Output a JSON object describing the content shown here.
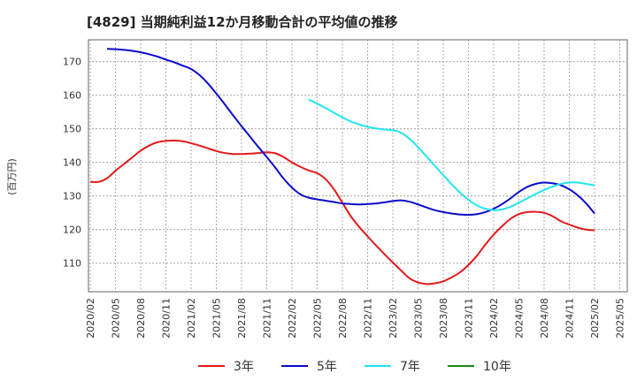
{
  "chart_data": {
    "type": "line",
    "title": "[4829]  当期純利益12か月移動合計の平均値の推移",
    "ylabel": "(百万円)",
    "xlabel": "",
    "ylim": [
      101.5,
      176.5
    ],
    "yticks": [
      110,
      120,
      130,
      140,
      150,
      160,
      170
    ],
    "x_ticks": [
      "2020/02",
      "2020/05",
      "2020/08",
      "2020/11",
      "2021/02",
      "2021/05",
      "2021/08",
      "2021/11",
      "2022/02",
      "2022/05",
      "2022/08",
      "2022/11",
      "2023/02",
      "2023/05",
      "2023/08",
      "2023/11",
      "2024/02",
      "2024/05",
      "2024/08",
      "2024/11",
      "2025/02",
      "2025/05"
    ],
    "grid": true,
    "legend_position": "bottom",
    "colors": {
      "3年": "#e41a1c",
      "5年": "#0a0acc",
      "7年": "#22e5f0",
      "10年": "#1a8a1a"
    },
    "series": [
      {
        "name": "3年",
        "color": "#e41a1c",
        "x": [
          "2020/02",
          "2020/03",
          "2020/04",
          "2020/05",
          "2020/06",
          "2020/07",
          "2020/08",
          "2020/09",
          "2020/10",
          "2020/11",
          "2020/12",
          "2021/01",
          "2021/02",
          "2021/03",
          "2021/04",
          "2021/05",
          "2021/06",
          "2021/07",
          "2021/08",
          "2021/09",
          "2021/10",
          "2021/11",
          "2021/12",
          "2022/01",
          "2022/02",
          "2022/03",
          "2022/04",
          "2022/05",
          "2022/06",
          "2022/07",
          "2022/08",
          "2022/09",
          "2022/10",
          "2022/11",
          "2022/12",
          "2023/01",
          "2023/02",
          "2023/03",
          "2023/04",
          "2023/05",
          "2023/06",
          "2023/07",
          "2023/08",
          "2023/09",
          "2023/10",
          "2023/11",
          "2023/12",
          "2024/01",
          "2024/02",
          "2024/03",
          "2024/04",
          "2024/05",
          "2024/06",
          "2024/07",
          "2024/08",
          "2024/09",
          "2024/10",
          "2024/11",
          "2024/12",
          "2025/01",
          "2025/02"
        ],
        "values": [
          134.2,
          134.2,
          135.3,
          137.5,
          139.5,
          141.5,
          143.5,
          145.0,
          146.0,
          146.4,
          146.5,
          146.3,
          145.7,
          145.0,
          144.2,
          143.4,
          142.8,
          142.5,
          142.5,
          142.6,
          142.8,
          143.0,
          142.7,
          141.6,
          140.0,
          138.7,
          137.6,
          136.8,
          135.0,
          132.0,
          128.0,
          124.0,
          120.8,
          118.0,
          115.3,
          112.7,
          110.2,
          107.8,
          105.5,
          104.3,
          103.8,
          104.0,
          104.6,
          105.8,
          107.3,
          109.5,
          112.2,
          115.5,
          118.5,
          121.0,
          123.2,
          124.6,
          125.2,
          125.3,
          125.0,
          124.0,
          122.5,
          121.5,
          120.6,
          120.0,
          119.8
        ]
      },
      {
        "name": "5年",
        "color": "#0a0acc",
        "x": [
          "2020/04",
          "2020/05",
          "2020/06",
          "2020/07",
          "2020/08",
          "2020/09",
          "2020/10",
          "2020/11",
          "2020/12",
          "2021/01",
          "2021/02",
          "2021/03",
          "2021/04",
          "2021/05",
          "2021/06",
          "2021/07",
          "2021/08",
          "2021/09",
          "2021/10",
          "2021/11",
          "2021/12",
          "2022/01",
          "2022/02",
          "2022/03",
          "2022/04",
          "2022/05",
          "2022/06",
          "2022/07",
          "2022/08",
          "2022/09",
          "2022/10",
          "2022/11",
          "2022/12",
          "2023/01",
          "2023/02",
          "2023/03",
          "2023/04",
          "2023/05",
          "2023/06",
          "2023/07",
          "2023/08",
          "2023/09",
          "2023/10",
          "2023/11",
          "2023/12",
          "2024/01",
          "2024/02",
          "2024/03",
          "2024/04",
          "2024/05",
          "2024/06",
          "2024/07",
          "2024/08",
          "2024/09",
          "2024/10",
          "2024/11",
          "2024/12",
          "2025/01",
          "2025/02"
        ],
        "values": [
          173.8,
          173.7,
          173.5,
          173.2,
          172.8,
          172.2,
          171.5,
          170.6,
          169.8,
          168.8,
          167.8,
          166.0,
          163.5,
          160.5,
          157.3,
          154.0,
          150.8,
          147.7,
          144.6,
          141.6,
          138.5,
          135.2,
          132.5,
          130.5,
          129.5,
          129.0,
          128.6,
          128.2,
          127.8,
          127.6,
          127.5,
          127.6,
          127.8,
          128.1,
          128.5,
          128.7,
          128.3,
          127.5,
          126.6,
          125.8,
          125.2,
          124.8,
          124.5,
          124.4,
          124.6,
          125.2,
          126.2,
          127.6,
          129.3,
          131.2,
          132.7,
          133.6,
          134.0,
          133.8,
          133.2,
          132.0,
          130.2,
          127.8,
          124.8
        ]
      },
      {
        "name": "7年",
        "color": "#22e5f0",
        "x": [
          "2022/04",
          "2022/05",
          "2022/06",
          "2022/07",
          "2022/08",
          "2022/09",
          "2022/10",
          "2022/11",
          "2022/12",
          "2023/01",
          "2023/02",
          "2023/03",
          "2023/04",
          "2023/05",
          "2023/06",
          "2023/07",
          "2023/08",
          "2023/09",
          "2023/10",
          "2023/11",
          "2023/12",
          "2024/01",
          "2024/02",
          "2024/03",
          "2024/04",
          "2024/05",
          "2024/06",
          "2024/07",
          "2024/08",
          "2024/09",
          "2024/10",
          "2024/11",
          "2024/12",
          "2025/01",
          "2025/02"
        ],
        "values": [
          158.7,
          157.5,
          156.2,
          154.8,
          153.4,
          152.2,
          151.3,
          150.6,
          150.1,
          149.8,
          149.6,
          148.8,
          147.0,
          144.5,
          141.8,
          139.0,
          136.2,
          133.5,
          131.0,
          128.9,
          127.2,
          126.2,
          125.8,
          126.0,
          126.8,
          128.0,
          129.3,
          130.6,
          131.8,
          132.8,
          133.6,
          134.0,
          134.0,
          133.6,
          133.2
        ]
      },
      {
        "name": "10年",
        "color": "#1a8a1a",
        "x": [],
        "values": []
      }
    ]
  }
}
